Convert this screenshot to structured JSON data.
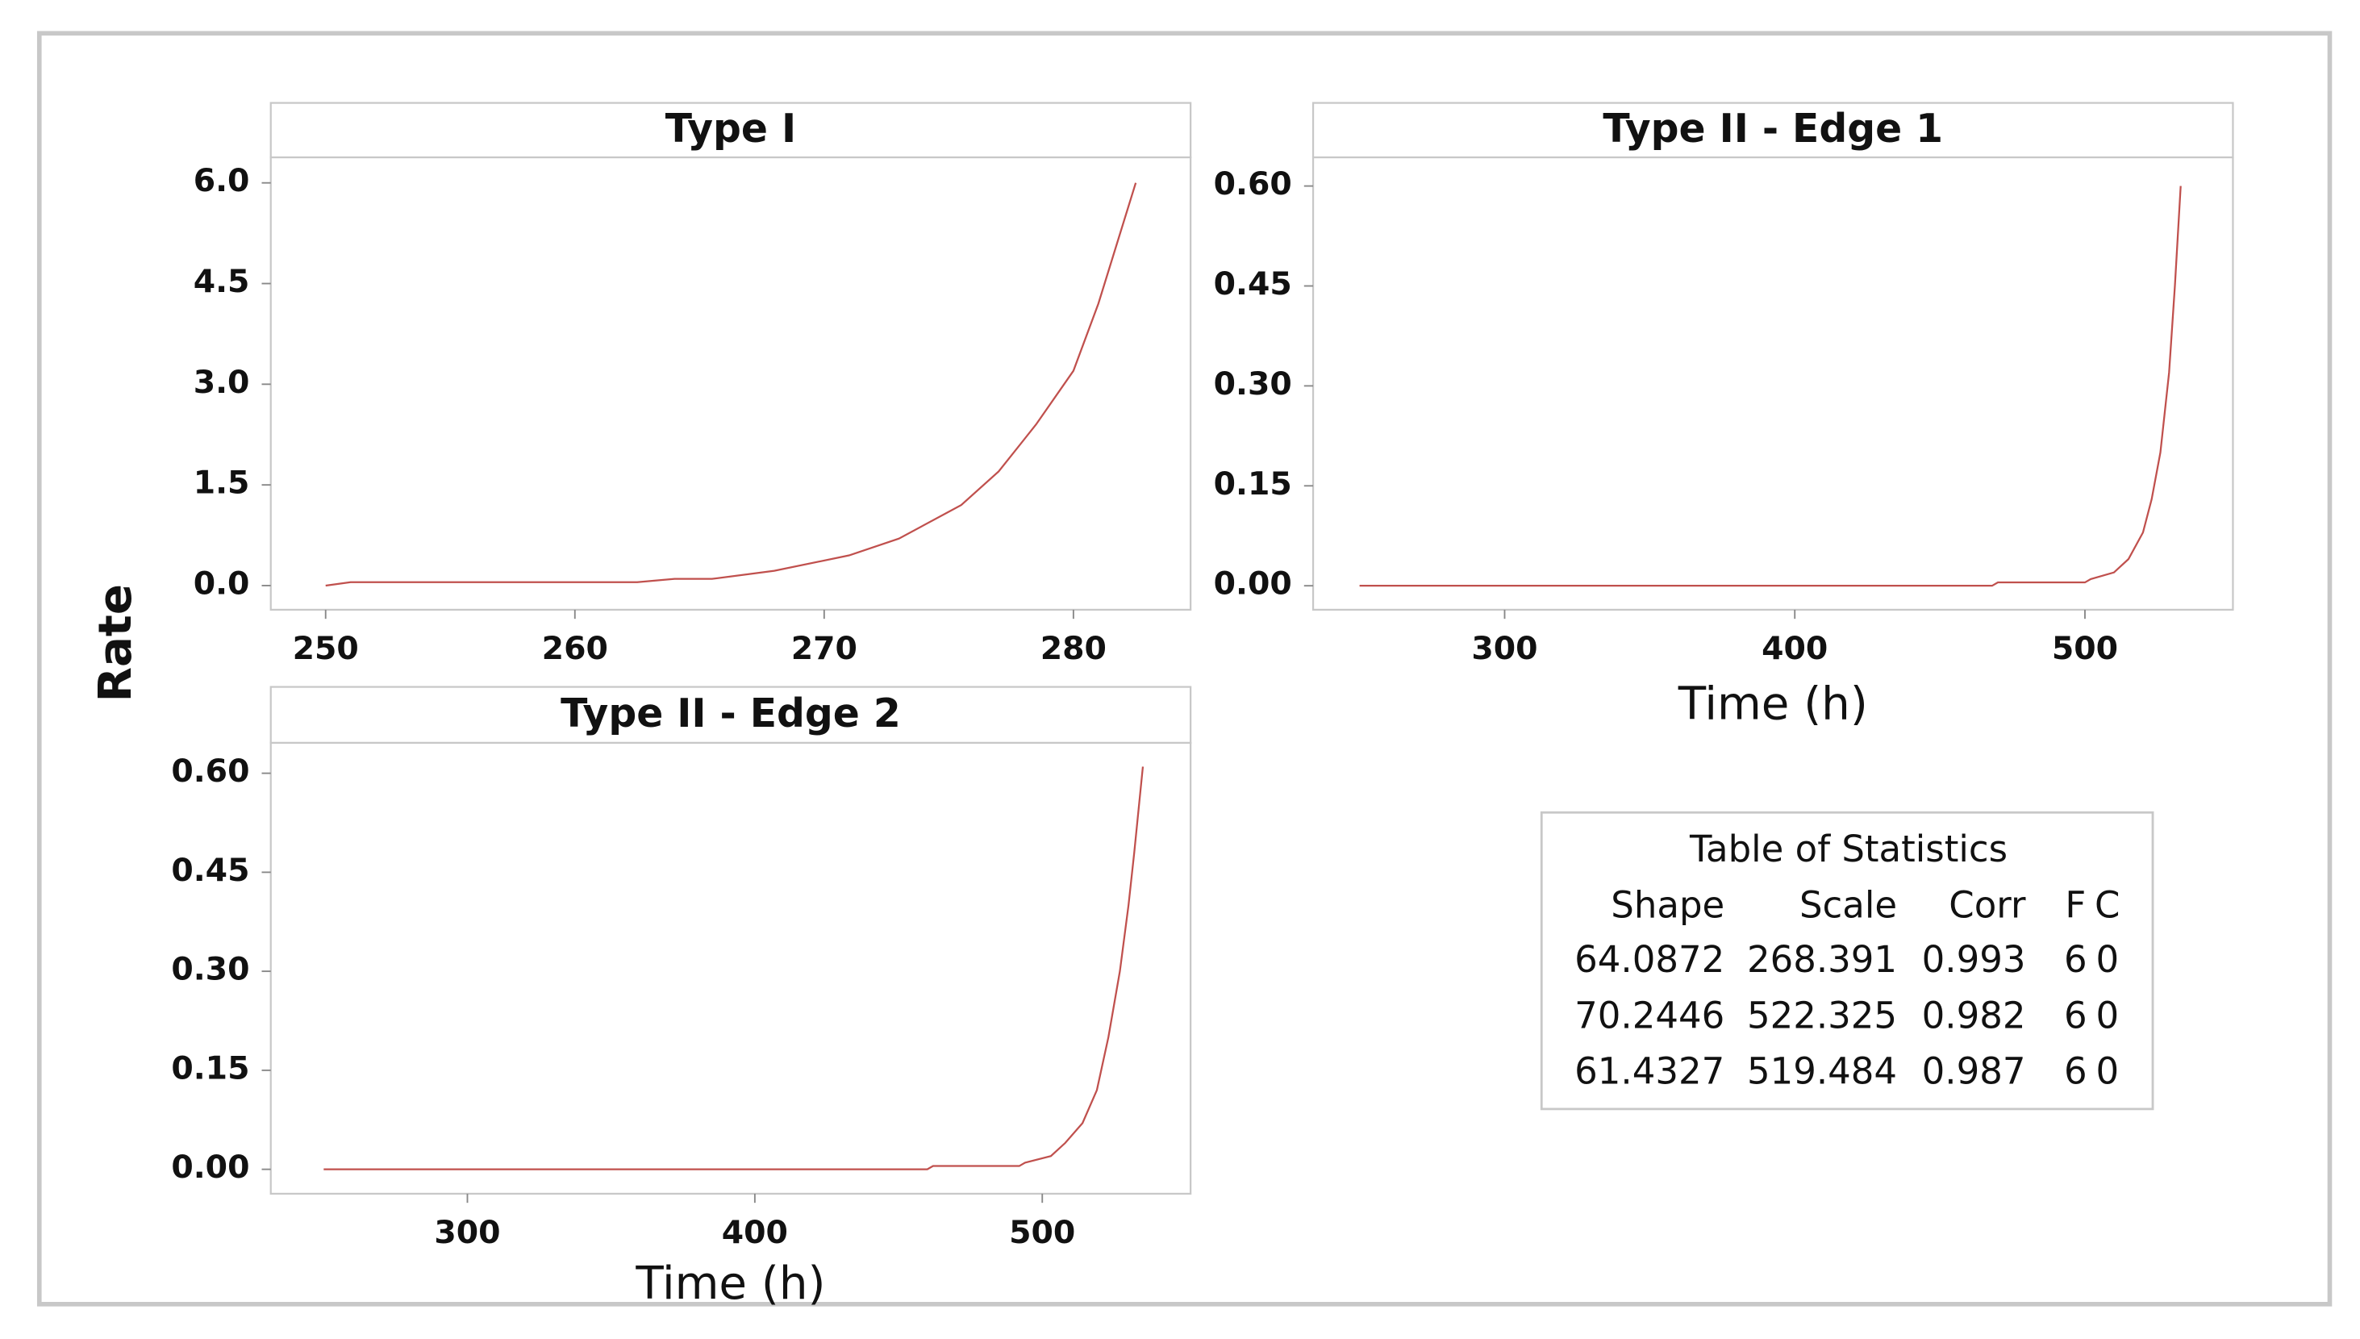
{
  "ylabel": "Rate",
  "chart_data": [
    {
      "type": "line",
      "title": "Type I",
      "color": "#c0504d",
      "x": [
        250,
        251,
        262.5,
        264,
        265.5,
        268,
        271,
        273,
        275.5,
        277,
        278.5,
        280,
        281,
        282.5
      ],
      "values": [
        0,
        0.05,
        0.05,
        0.1,
        0.1,
        0.22,
        0.45,
        0.7,
        1.2,
        1.7,
        2.4,
        3.2,
        4.2,
        6.0
      ],
      "xlim": [
        247.8,
        284.7
      ],
      "xticks": [
        250,
        260,
        270,
        280
      ],
      "ylim": [
        -0.36,
        6.38
      ],
      "yticks": [
        {
          "value": 0,
          "label": "0.0"
        },
        1.5,
        {
          "value": 3,
          "label": "3.0"
        },
        4.5,
        {
          "value": 6,
          "label": "6.0"
        }
      ]
    },
    {
      "type": "line",
      "title": "Type II - Edge 1",
      "xlabel": "Time (h)",
      "color": "#c0504d",
      "x": [
        250,
        468,
        470,
        500,
        502,
        510,
        515,
        520,
        523,
        526,
        529,
        531,
        533
      ],
      "values": [
        0,
        0,
        0.005,
        0.005,
        0.01,
        0.02,
        0.04,
        0.08,
        0.13,
        0.2,
        0.32,
        0.45,
        0.6
      ],
      "xlim": [
        234,
        551
      ],
      "xticks": [
        300,
        400,
        500
      ],
      "ylim": [
        -0.036,
        0.643
      ],
      "yticks": [
        {
          "value": 0,
          "label": "0.00"
        },
        {
          "value": 0.15,
          "label": "0.15"
        },
        {
          "value": 0.3,
          "label": "0.30"
        },
        {
          "value": 0.45,
          "label": "0.45"
        },
        {
          "value": 0.6,
          "label": "0.60"
        }
      ]
    },
    {
      "type": "line",
      "title": "Type II - Edge 2",
      "xlabel": "Time (h)",
      "color": "#c0504d",
      "x": [
        250,
        460,
        462,
        492,
        494,
        503,
        508,
        514,
        519,
        523,
        527,
        530,
        532,
        535
      ],
      "values": [
        0,
        0,
        0.005,
        0.005,
        0.01,
        0.02,
        0.04,
        0.07,
        0.12,
        0.2,
        0.3,
        0.4,
        0.48,
        0.61
      ],
      "xlim": [
        231.6,
        551.6
      ],
      "xticks": [
        300,
        400,
        500
      ],
      "ylim": [
        -0.037,
        0.646
      ],
      "yticks": [
        {
          "value": 0,
          "label": "0.00"
        },
        {
          "value": 0.15,
          "label": "0.15"
        },
        {
          "value": 0.3,
          "label": "0.30"
        },
        {
          "value": 0.45,
          "label": "0.45"
        },
        {
          "value": 0.6,
          "label": "0.60"
        }
      ]
    }
  ],
  "table": {
    "title": "Table of Statistics",
    "columns": [
      "Shape",
      "Scale",
      "Corr",
      "F",
      "C"
    ],
    "rows": [
      [
        64.0872,
        268.391,
        0.993,
        6,
        0
      ],
      [
        70.2446,
        522.325,
        0.982,
        6,
        0
      ],
      [
        61.4327,
        519.484,
        0.987,
        6,
        0
      ]
    ]
  }
}
